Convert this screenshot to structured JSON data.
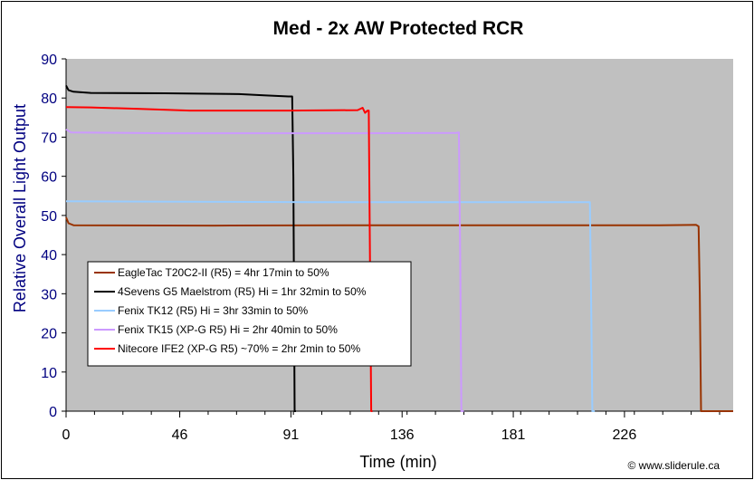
{
  "chart_data": {
    "type": "line",
    "title": "Med - 2x AW Protected RCR",
    "xlabel": "Time (min)",
    "ylabel": "Relative Overall Light Output",
    "xlim": [
      0,
      270
    ],
    "ylim": [
      0,
      90
    ],
    "x_ticks": [
      0,
      46,
      91,
      136,
      181,
      226
    ],
    "y_ticks": [
      0,
      10,
      20,
      30,
      40,
      50,
      60,
      70,
      80,
      90
    ],
    "grid": false,
    "legend_position": "lower-left",
    "credit": "© www.sliderule.ca",
    "colors": {
      "plot_bg": "#c0c0c0",
      "frame_bg": "#ffffff"
    },
    "series": [
      {
        "name": "EagleTac T20C2-II (R5) = 4hr 17min to 50%",
        "color": "#993300",
        "points": [
          [
            0,
            49.5
          ],
          [
            1,
            48
          ],
          [
            3,
            47.5
          ],
          [
            60,
            47.4
          ],
          [
            120,
            47.5
          ],
          [
            180,
            47.5
          ],
          [
            240,
            47.5
          ],
          [
            255,
            47.6
          ],
          [
            256,
            47.2
          ],
          [
            256.5,
            30
          ],
          [
            257,
            0
          ],
          [
            270,
            0
          ]
        ]
      },
      {
        "name": "4Sevens G5 Maelstrom (R5) Hi = 1hr 32min to 50%",
        "color": "#000000",
        "points": [
          [
            0,
            83.2
          ],
          [
            1,
            82
          ],
          [
            3,
            81.6
          ],
          [
            10,
            81.3
          ],
          [
            40,
            81.2
          ],
          [
            70,
            81.0
          ],
          [
            80,
            80.7
          ],
          [
            90,
            80.4
          ],
          [
            91.5,
            80.4
          ],
          [
            92,
            60
          ],
          [
            92.5,
            0
          ],
          [
            93,
            0
          ]
        ]
      },
      {
        "name": "Fenix TK12 (R5) Hi = 3hr 33min to 50%",
        "color": "#99ccff",
        "points": [
          [
            0,
            53.6
          ],
          [
            50,
            53.5
          ],
          [
            100,
            53.4
          ],
          [
            150,
            53.4
          ],
          [
            200,
            53.4
          ],
          [
            212,
            53.4
          ],
          [
            212.5,
            30
          ],
          [
            213,
            0
          ],
          [
            214,
            0
          ]
        ]
      },
      {
        "name": "Fenix TK15 (XP-G R5) Hi = 2hr 40min to 50%",
        "color": "#cc99ff",
        "points": [
          [
            0,
            72
          ],
          [
            2,
            71.2
          ],
          [
            40,
            71
          ],
          [
            80,
            71
          ],
          [
            120,
            71
          ],
          [
            158,
            71.1
          ],
          [
            159,
            71.2
          ],
          [
            159.5,
            40
          ],
          [
            160,
            0
          ],
          [
            161,
            0
          ]
        ]
      },
      {
        "name": "Nitecore IFE2 (XP-G R5) ~70% = 2hr 2min to 50%",
        "color": "#ff0000",
        "points": [
          [
            0,
            77.7
          ],
          [
            10,
            77.6
          ],
          [
            30,
            77.2
          ],
          [
            50,
            76.8
          ],
          [
            90,
            76.8
          ],
          [
            118,
            76.9
          ],
          [
            120,
            77.5
          ],
          [
            121,
            76.2
          ],
          [
            122,
            76.8
          ],
          [
            122.5,
            76.8
          ],
          [
            123,
            40
          ],
          [
            123.5,
            0
          ],
          [
            124,
            0
          ]
        ]
      }
    ]
  }
}
